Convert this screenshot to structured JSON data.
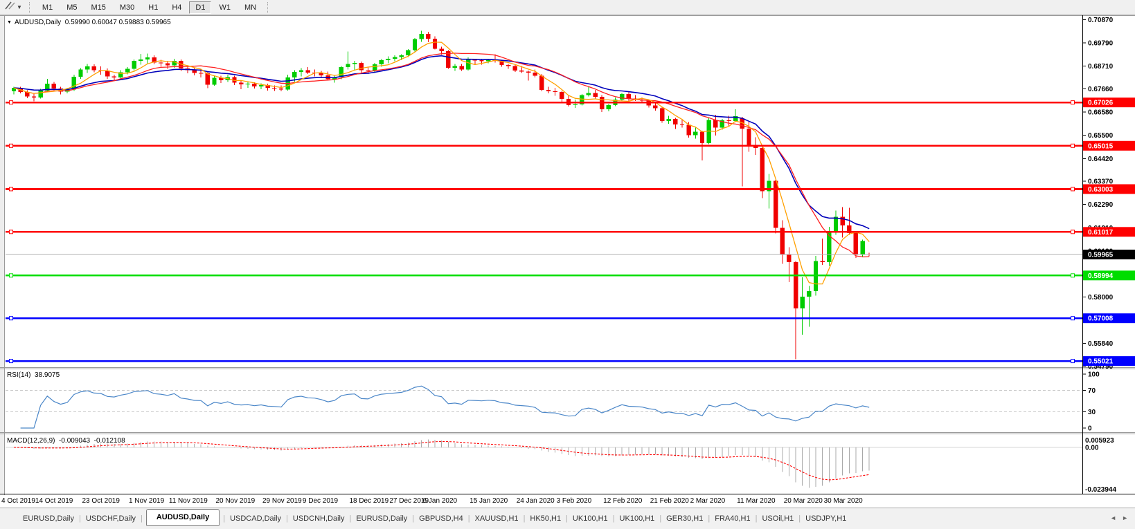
{
  "toolbar": {
    "timeframes": [
      "M1",
      "M5",
      "M15",
      "M30",
      "H1",
      "H4",
      "D1",
      "W1",
      "MN"
    ],
    "active_timeframe": "D1"
  },
  "chart": {
    "symbol_period": "AUDUSD,Daily",
    "ohlc_text": "0.59990 0.60047 0.59883 0.59965",
    "colors": {
      "bull": "#00cc00",
      "bear": "#f00000",
      "ma_fast": "#ffa000",
      "ma_mid": "#ff2020",
      "ma_slow": "#0000bb",
      "line_red": "#ff0000",
      "line_green": "#00dd00",
      "line_blue": "#0000ff",
      "price_line": "#b0b0b0",
      "price_box": "#000000"
    },
    "axis_price_ticks": [
      "0.70870",
      "0.69790",
      "0.68710",
      "0.67660",
      "0.66580",
      "0.65500",
      "0.64420",
      "0.63370",
      "0.62290",
      "0.61210",
      "0.60130",
      "0.59050",
      "0.58000",
      "0.56920",
      "0.55840",
      "0.54790"
    ],
    "hlines": [
      {
        "price": 0.67026,
        "text": "0.67026",
        "color": "#ff0000"
      },
      {
        "price": 0.65015,
        "text": "0.65015",
        "color": "#ff0000"
      },
      {
        "price": 0.63003,
        "text": "0.63003",
        "color": "#ff0000"
      },
      {
        "price": 0.61017,
        "text": "0.61017",
        "color": "#ff0000"
      },
      {
        "price": 0.58994,
        "text": "0.58994",
        "color": "#00dd00"
      },
      {
        "price": 0.57008,
        "text": "0.57008",
        "color": "#0000ff"
      },
      {
        "price": 0.55021,
        "text": "0.55021",
        "color": "#0000ff"
      }
    ],
    "current_price": {
      "price": 0.59965,
      "text": "0.59965"
    },
    "date_labels": [
      {
        "t": "4 Oct 2019",
        "i": 0
      },
      {
        "t": "14 Oct 2019",
        "i": 6
      },
      {
        "t": "23 Oct 2019",
        "i": 13
      },
      {
        "t": "1 Nov 2019",
        "i": 20
      },
      {
        "t": "11 Nov 2019",
        "i": 26
      },
      {
        "t": "20 Nov 2019",
        "i": 33
      },
      {
        "t": "29 Nov 2019",
        "i": 40
      },
      {
        "t": "9 Dec 2019",
        "i": 46
      },
      {
        "t": "18 Dec 2019",
        "i": 53
      },
      {
        "t": "27 Dec 2019",
        "i": 59
      },
      {
        "t": "6 Jan 2020",
        "i": 64
      },
      {
        "t": "15 Jan 2020",
        "i": 71
      },
      {
        "t": "24 Jan 2020",
        "i": 78
      },
      {
        "t": "3 Feb 2020",
        "i": 84
      },
      {
        "t": "12 Feb 2020",
        "i": 91
      },
      {
        "t": "21 Feb 2020",
        "i": 98
      },
      {
        "t": "2 Mar 2020",
        "i": 104
      },
      {
        "t": "11 Mar 2020",
        "i": 111
      },
      {
        "t": "20 Mar 2020",
        "i": 118
      },
      {
        "t": "30 Mar 2020",
        "i": 124
      }
    ],
    "candles": [
      [
        0.6755,
        0.6775,
        0.674,
        0.677
      ],
      [
        0.677,
        0.6776,
        0.6745,
        0.6752
      ],
      [
        0.6752,
        0.676,
        0.6722,
        0.673
      ],
      [
        0.673,
        0.6742,
        0.6708,
        0.6726
      ],
      [
        0.6726,
        0.6765,
        0.672,
        0.6758
      ],
      [
        0.6758,
        0.6812,
        0.6754,
        0.679
      ],
      [
        0.679,
        0.6797,
        0.676,
        0.6768
      ],
      [
        0.6768,
        0.6776,
        0.674,
        0.6753
      ],
      [
        0.6753,
        0.677,
        0.6745,
        0.6762
      ],
      [
        0.6762,
        0.6832,
        0.6756,
        0.6822
      ],
      [
        0.6822,
        0.6862,
        0.6812,
        0.6855
      ],
      [
        0.6855,
        0.6882,
        0.684,
        0.687
      ],
      [
        0.687,
        0.688,
        0.6843,
        0.6853
      ],
      [
        0.6853,
        0.687,
        0.6832,
        0.685
      ],
      [
        0.685,
        0.686,
        0.6813,
        0.6823
      ],
      [
        0.6823,
        0.6832,
        0.6805,
        0.6818
      ],
      [
        0.6818,
        0.6852,
        0.6814,
        0.6842
      ],
      [
        0.6842,
        0.6867,
        0.6833,
        0.6858
      ],
      [
        0.6858,
        0.6902,
        0.685,
        0.6895
      ],
      [
        0.6895,
        0.6928,
        0.6878,
        0.6902
      ],
      [
        0.6902,
        0.693,
        0.6882,
        0.6912
      ],
      [
        0.6912,
        0.6921,
        0.688,
        0.6888
      ],
      [
        0.6888,
        0.69,
        0.6868,
        0.6884
      ],
      [
        0.6884,
        0.6896,
        0.6858,
        0.6875
      ],
      [
        0.6875,
        0.6906,
        0.6864,
        0.6896
      ],
      [
        0.6896,
        0.6902,
        0.6848,
        0.686
      ],
      [
        0.686,
        0.6872,
        0.6838,
        0.6852
      ],
      [
        0.6852,
        0.6862,
        0.6828,
        0.684
      ],
      [
        0.684,
        0.6852,
        0.6818,
        0.6838
      ],
      [
        0.6838,
        0.6846,
        0.6769,
        0.6785
      ],
      [
        0.6785,
        0.6827,
        0.678,
        0.6817
      ],
      [
        0.6817,
        0.6826,
        0.6793,
        0.6805
      ],
      [
        0.6805,
        0.6832,
        0.6798,
        0.6821
      ],
      [
        0.6821,
        0.6827,
        0.6784,
        0.6794
      ],
      [
        0.6794,
        0.6802,
        0.6764,
        0.6786
      ],
      [
        0.6786,
        0.6797,
        0.677,
        0.6789
      ],
      [
        0.6789,
        0.6796,
        0.6768,
        0.6777
      ],
      [
        0.6777,
        0.6791,
        0.6764,
        0.6783
      ],
      [
        0.6783,
        0.679,
        0.6758,
        0.677
      ],
      [
        0.677,
        0.6781,
        0.6756,
        0.6767
      ],
      [
        0.6767,
        0.6781,
        0.6754,
        0.6762
      ],
      [
        0.6762,
        0.6831,
        0.6758,
        0.6818
      ],
      [
        0.6818,
        0.6852,
        0.68,
        0.6845
      ],
      [
        0.6845,
        0.6862,
        0.6824,
        0.6853
      ],
      [
        0.6853,
        0.6866,
        0.6834,
        0.6841
      ],
      [
        0.6841,
        0.6856,
        0.6824,
        0.6839
      ],
      [
        0.6839,
        0.6849,
        0.6819,
        0.6828
      ],
      [
        0.6828,
        0.6846,
        0.6804,
        0.681
      ],
      [
        0.681,
        0.6826,
        0.6794,
        0.6821
      ],
      [
        0.6821,
        0.6872,
        0.681,
        0.6866
      ],
      [
        0.6866,
        0.6939,
        0.6856,
        0.6881
      ],
      [
        0.6881,
        0.6896,
        0.6854,
        0.6886
      ],
      [
        0.6886,
        0.6892,
        0.6838,
        0.6852
      ],
      [
        0.6852,
        0.6866,
        0.6834,
        0.6849
      ],
      [
        0.6849,
        0.6886,
        0.684,
        0.688
      ],
      [
        0.688,
        0.6906,
        0.6869,
        0.6899
      ],
      [
        0.6899,
        0.6916,
        0.6884,
        0.6906
      ],
      [
        0.6906,
        0.6921,
        0.6894,
        0.6913
      ],
      [
        0.6913,
        0.6926,
        0.6899,
        0.6921
      ],
      [
        0.6921,
        0.6951,
        0.6914,
        0.6946
      ],
      [
        0.6946,
        0.7002,
        0.6939,
        0.6996
      ],
      [
        0.6996,
        0.7036,
        0.6984,
        0.7021
      ],
      [
        0.7021,
        0.7031,
        0.6983,
        0.6999
      ],
      [
        0.6999,
        0.701,
        0.6948,
        0.6952
      ],
      [
        0.6952,
        0.6962,
        0.6924,
        0.6941
      ],
      [
        0.6941,
        0.6946,
        0.6858,
        0.6864
      ],
      [
        0.6864,
        0.6882,
        0.6849,
        0.6871
      ],
      [
        0.6871,
        0.6881,
        0.6849,
        0.6856
      ],
      [
        0.6856,
        0.6912,
        0.6851,
        0.6901
      ],
      [
        0.6901,
        0.6906,
        0.6879,
        0.6899
      ],
      [
        0.6899,
        0.6906,
        0.6878,
        0.6894
      ],
      [
        0.6894,
        0.6906,
        0.6884,
        0.6901
      ],
      [
        0.6901,
        0.6926,
        0.6888,
        0.6896
      ],
      [
        0.6896,
        0.6901,
        0.6869,
        0.6876
      ],
      [
        0.6876,
        0.6882,
        0.6858,
        0.6871
      ],
      [
        0.6871,
        0.688,
        0.6844,
        0.6851
      ],
      [
        0.6851,
        0.6871,
        0.6839,
        0.6846
      ],
      [
        0.6846,
        0.6851,
        0.6804,
        0.6841
      ],
      [
        0.6841,
        0.6856,
        0.6818,
        0.6827
      ],
      [
        0.6827,
        0.6834,
        0.6754,
        0.6761
      ],
      [
        0.6761,
        0.6776,
        0.6744,
        0.6754
      ],
      [
        0.6754,
        0.6771,
        0.6734,
        0.6751
      ],
      [
        0.6751,
        0.6756,
        0.6698,
        0.6719
      ],
      [
        0.6719,
        0.6736,
        0.6683,
        0.6691
      ],
      [
        0.6691,
        0.6716,
        0.6678,
        0.6693
      ],
      [
        0.6693,
        0.6741,
        0.6689,
        0.6736
      ],
      [
        0.6736,
        0.6776,
        0.6731,
        0.6746
      ],
      [
        0.6746,
        0.6761,
        0.6719,
        0.6729
      ],
      [
        0.6729,
        0.6736,
        0.6658,
        0.6671
      ],
      [
        0.6671,
        0.6696,
        0.6662,
        0.6691
      ],
      [
        0.6691,
        0.6726,
        0.6686,
        0.6716
      ],
      [
        0.6716,
        0.6746,
        0.6711,
        0.6741
      ],
      [
        0.6741,
        0.6751,
        0.6709,
        0.6721
      ],
      [
        0.6721,
        0.6736,
        0.6709,
        0.6716
      ],
      [
        0.6716,
        0.6726,
        0.6699,
        0.6711
      ],
      [
        0.6711,
        0.6716,
        0.6679,
        0.6689
      ],
      [
        0.6689,
        0.6701,
        0.6664,
        0.6676
      ],
      [
        0.6676,
        0.6681,
        0.6609,
        0.6616
      ],
      [
        0.6616,
        0.6641,
        0.6604,
        0.6626
      ],
      [
        0.6626,
        0.6631,
        0.6579,
        0.6601
      ],
      [
        0.6601,
        0.6621,
        0.6586,
        0.6599
      ],
      [
        0.6599,
        0.6611,
        0.6539,
        0.6551
      ],
      [
        0.6551,
        0.6586,
        0.6534,
        0.6566
      ],
      [
        0.6566,
        0.6571,
        0.6434,
        0.6514
      ],
      [
        0.6514,
        0.6631,
        0.6509,
        0.6621
      ],
      [
        0.6621,
        0.6646,
        0.6549,
        0.6586
      ],
      [
        0.6586,
        0.6626,
        0.6576,
        0.6619
      ],
      [
        0.6619,
        0.6641,
        0.6594,
        0.6616
      ],
      [
        0.6616,
        0.6671,
        0.6611,
        0.6639
      ],
      [
        0.6629,
        0.6636,
        0.6313,
        0.6581
      ],
      [
        0.6581,
        0.6616,
        0.6474,
        0.6501
      ],
      [
        0.6501,
        0.6541,
        0.6459,
        0.6491
      ],
      [
        0.6491,
        0.6496,
        0.6259,
        0.6291
      ],
      [
        0.6291,
        0.6371,
        0.6211,
        0.6339
      ],
      [
        0.6339,
        0.6344,
        0.6094,
        0.6121
      ],
      [
        0.6121,
        0.6156,
        0.5954,
        0.5996
      ],
      [
        0.5996,
        0.6031,
        0.5868,
        0.5961
      ],
      [
        0.5961,
        0.5966,
        0.551,
        0.5746
      ],
      [
        0.5746,
        0.5891,
        0.5624,
        0.5801
      ],
      [
        0.5801,
        0.5851,
        0.5661,
        0.5826
      ],
      [
        0.5826,
        0.5991,
        0.5806,
        0.5966
      ],
      [
        0.5966,
        0.6071,
        0.5949,
        0.5961
      ],
      [
        0.5961,
        0.6126,
        0.5944,
        0.6101
      ],
      [
        0.6101,
        0.6201,
        0.6089,
        0.6171
      ],
      [
        0.6171,
        0.6216,
        0.6076,
        0.6131
      ],
      [
        0.6131,
        0.6214,
        0.6089,
        0.6096
      ],
      [
        0.6096,
        0.6106,
        0.5981,
        0.5999
      ],
      [
        0.5999,
        0.6066,
        0.5986,
        0.6059
      ],
      [
        0.5999,
        0.60047,
        0.59883,
        0.59965
      ]
    ]
  },
  "rsi": {
    "name": "RSI(14)",
    "value": "38.9075",
    "axis_labels": [
      "100",
      "70",
      "30",
      "0"
    ],
    "level_values": [
      70,
      30
    ],
    "line_color": "#4a86c8"
  },
  "macd": {
    "name": "MACD(12,26,9)",
    "value": "-0.009043",
    "signal_value": "-0.012108",
    "axis_labels": [
      {
        "text": "0.005923",
        "value": 0.005923
      },
      {
        "text": "0.00",
        "value": 0
      },
      {
        "text": "-0.023944",
        "value": -0.023944
      }
    ],
    "histogram_color": "#a8a8a8",
    "signal_color": "#ff0000"
  },
  "tabs": {
    "items": [
      "EURUSD,Daily",
      "USDCHF,Daily",
      "AUDUSD,Daily",
      "USDCAD,Daily",
      "USDCNH,Daily",
      "EURUSD,Daily",
      "GBPUSD,H4",
      "XAUUSD,H1",
      "HK50,H1",
      "UK100,H1",
      "UK100,H1",
      "GER30,H1",
      "FRA40,H1",
      "USOil,H1",
      "USDJPY,H1"
    ],
    "active_index": 2,
    "left_arrow": "◄",
    "right_arrow": "►"
  }
}
